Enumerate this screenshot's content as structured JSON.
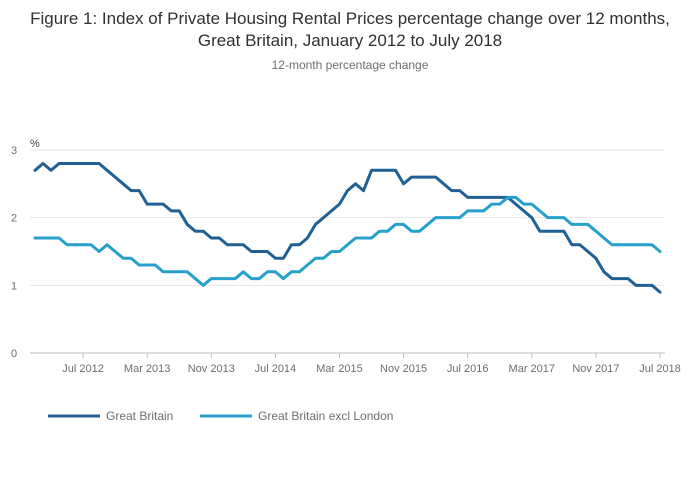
{
  "chart_data": {
    "type": "line",
    "title": "Figure 1: Index of Private Housing Rental Prices percentage change over 12 months, Great Britain, January 2012 to July 2018",
    "subtitle": "12-month percentage change",
    "ylabel": "%",
    "ylim": [
      0,
      3
    ],
    "yticks": [
      "0",
      "1",
      "2",
      "3"
    ],
    "xtick_labels": [
      "Jul 2012",
      "Mar 2013",
      "Nov 2013",
      "Jul 2014",
      "Mar 2015",
      "Nov 2015",
      "Jul 2016",
      "Mar 2017",
      "Nov 2017",
      "Jul 2018"
    ],
    "xtick_month_index": [
      6,
      14,
      22,
      30,
      38,
      46,
      54,
      62,
      70,
      78
    ],
    "month_count": 79,
    "grid": "horizontal",
    "legend_position": "bottom-left",
    "series": [
      {
        "name": "Great Britain",
        "color": "#206095",
        "values": [
          2.7,
          2.8,
          2.7,
          2.8,
          2.8,
          2.8,
          2.8,
          2.8,
          2.8,
          2.7,
          2.6,
          2.5,
          2.4,
          2.4,
          2.2,
          2.2,
          2.2,
          2.1,
          2.1,
          1.9,
          1.8,
          1.8,
          1.7,
          1.7,
          1.6,
          1.6,
          1.6,
          1.5,
          1.5,
          1.5,
          1.4,
          1.4,
          1.6,
          1.6,
          1.7,
          1.9,
          2.0,
          2.1,
          2.2,
          2.4,
          2.5,
          2.4,
          2.7,
          2.7,
          2.7,
          2.7,
          2.5,
          2.6,
          2.6,
          2.6,
          2.6,
          2.5,
          2.4,
          2.4,
          2.3,
          2.3,
          2.3,
          2.3,
          2.3,
          2.3,
          2.2,
          2.1,
          2.0,
          1.8,
          1.8,
          1.8,
          1.8,
          1.6,
          1.6,
          1.5,
          1.4,
          1.2,
          1.1,
          1.1,
          1.1,
          1.0,
          1.0,
          1.0,
          0.9
        ]
      },
      {
        "name": "Great Britain excl London",
        "color": "#27a0cc",
        "values": [
          1.7,
          1.7,
          1.7,
          1.7,
          1.6,
          1.6,
          1.6,
          1.6,
          1.5,
          1.6,
          1.5,
          1.4,
          1.4,
          1.3,
          1.3,
          1.3,
          1.2,
          1.2,
          1.2,
          1.2,
          1.1,
          1.0,
          1.1,
          1.1,
          1.1,
          1.1,
          1.2,
          1.1,
          1.1,
          1.2,
          1.2,
          1.1,
          1.2,
          1.2,
          1.3,
          1.4,
          1.4,
          1.5,
          1.5,
          1.6,
          1.7,
          1.7,
          1.7,
          1.8,
          1.8,
          1.9,
          1.9,
          1.8,
          1.8,
          1.9,
          2.0,
          2.0,
          2.0,
          2.0,
          2.1,
          2.1,
          2.1,
          2.2,
          2.2,
          2.3,
          2.3,
          2.2,
          2.2,
          2.1,
          2.0,
          2.0,
          2.0,
          1.9,
          1.9,
          1.9,
          1.8,
          1.7,
          1.6,
          1.6,
          1.6,
          1.6,
          1.6,
          1.6,
          1.5
        ]
      }
    ]
  }
}
